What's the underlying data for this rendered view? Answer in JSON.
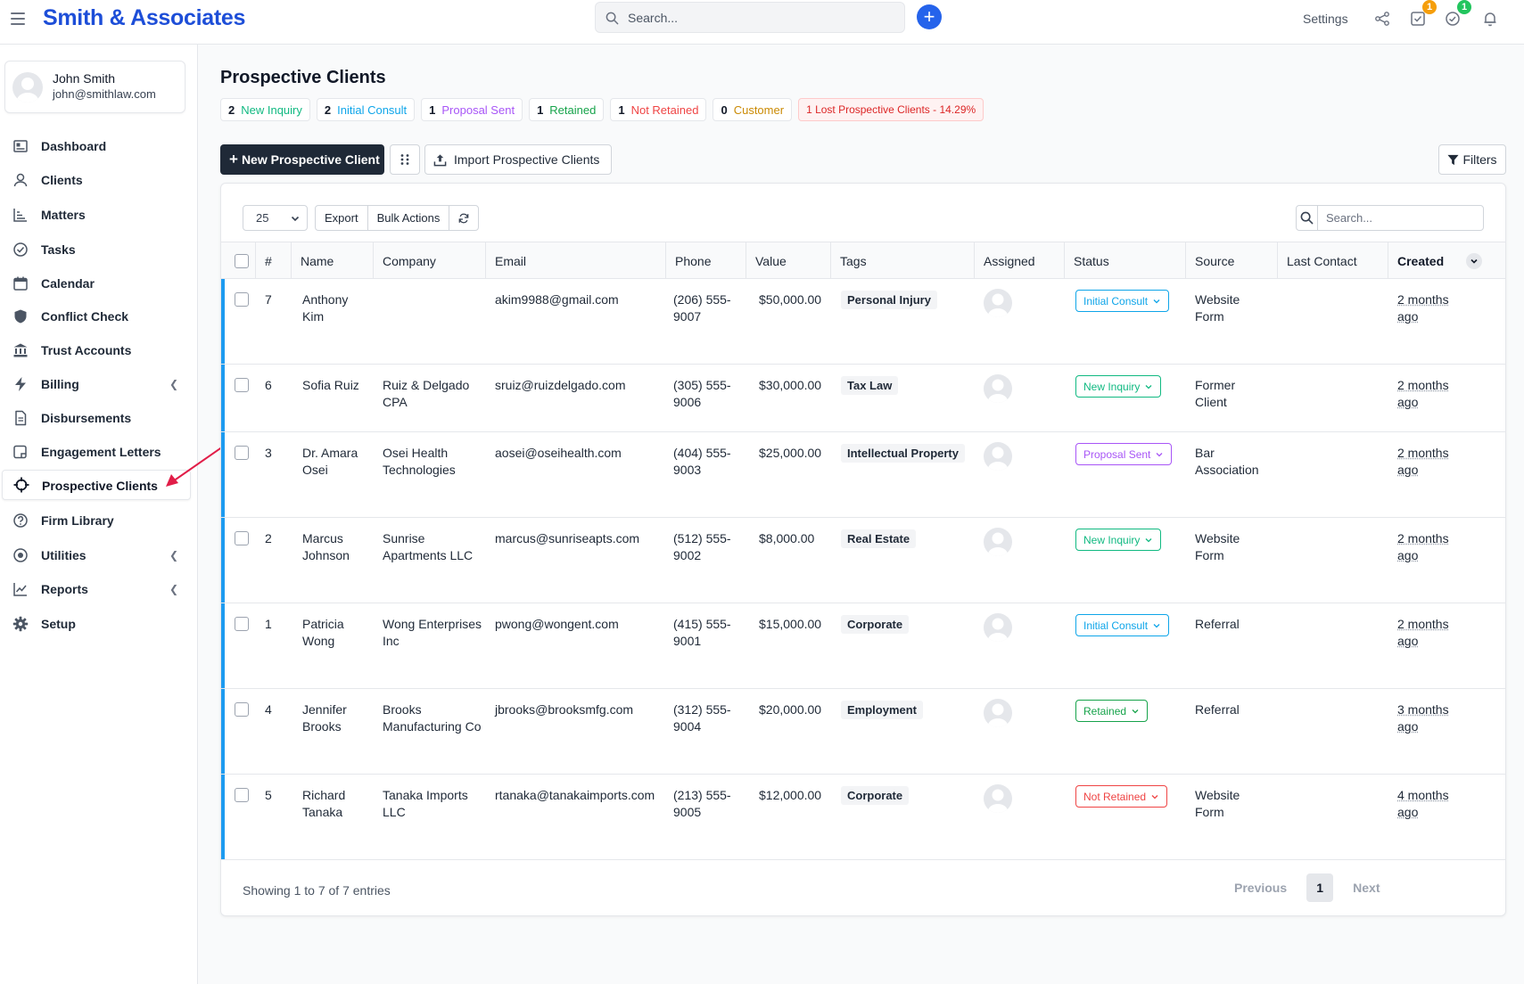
{
  "app": {
    "brand": "Smith & Associates",
    "search_placeholder": "Search...",
    "settings_label": "Settings",
    "badges": {
      "tasks": "1",
      "timer": "1"
    },
    "colors": {
      "brand": "#1d4ed8",
      "accent": "#2563eb",
      "badge_orange": "#f59e0b",
      "badge_green": "#22c55e"
    }
  },
  "user": {
    "name": "John Smith",
    "email": "john@smithlaw.com"
  },
  "sidebar": {
    "items": [
      {
        "label": "Dashboard",
        "icon": "dashboard-icon"
      },
      {
        "label": "Clients",
        "icon": "user-icon"
      },
      {
        "label": "Matters",
        "icon": "chart-bars-icon"
      },
      {
        "label": "Tasks",
        "icon": "check-circle-icon"
      },
      {
        "label": "Calendar",
        "icon": "calendar-icon"
      },
      {
        "label": "Conflict Check",
        "icon": "shield-icon"
      },
      {
        "label": "Trust Accounts",
        "icon": "bank-icon"
      },
      {
        "label": "Billing",
        "icon": "bolt-icon"
      },
      {
        "label": "Disbursements",
        "icon": "document-icon"
      },
      {
        "label": "Engagement Letters",
        "icon": "letter-icon"
      },
      {
        "label": "Prospective Clients",
        "icon": "crosshair-icon"
      },
      {
        "label": "Firm Library",
        "icon": "help-circle-icon"
      },
      {
        "label": "Utilities",
        "icon": "target-icon"
      },
      {
        "label": "Reports",
        "icon": "line-chart-icon"
      },
      {
        "label": "Setup",
        "icon": "gear-icon"
      }
    ]
  },
  "main": {
    "title": "Prospective Clients",
    "summary": [
      {
        "count": "2",
        "label": "New Inquiry",
        "color": "#10b981"
      },
      {
        "count": "2",
        "label": "Initial Consult",
        "color": "#0ea5e9"
      },
      {
        "count": "1",
        "label": "Proposal Sent",
        "color": "#a855f7"
      },
      {
        "count": "1",
        "label": "Retained",
        "color": "#16a34a"
      },
      {
        "count": "1",
        "label": "Not Retained",
        "color": "#ef4444"
      },
      {
        "count": "0",
        "label": "Customer",
        "color": "#ca8a04"
      }
    ],
    "lost_summary": "1 Lost Prospective Clients - 14.29%",
    "new_button": "New Prospective Client",
    "import_button": "Import Prospective Clients",
    "filters_button": "Filters"
  },
  "table": {
    "page_size": "25",
    "export_label": "Export",
    "bulk_label": "Bulk Actions",
    "search_placeholder": "Search...",
    "columns": [
      "#",
      "Name",
      "Company",
      "Email",
      "Phone",
      "Value",
      "Tags",
      "Assigned",
      "Status",
      "Source",
      "Last Contact",
      "Created"
    ],
    "rows": [
      {
        "id": "7",
        "name": [
          "Anthony",
          "Kim"
        ],
        "company": [],
        "email": "akim9988@gmail.com",
        "phone": [
          "(206) 555-",
          "9007"
        ],
        "value": "$50,000.00",
        "tag": "Personal Injury",
        "status": "Initial Consult",
        "status_color": "#0ea5e9",
        "source": [
          "Website",
          "Form"
        ],
        "last_contact": "",
        "created": [
          "2 months",
          "ago"
        ]
      },
      {
        "id": "6",
        "name": [
          "Sofia Ruiz"
        ],
        "company": [
          "Ruiz & Delgado",
          "CPA"
        ],
        "email": "sruiz@ruizdelgado.com",
        "phone": [
          "(305) 555-",
          "9006"
        ],
        "value": "$30,000.00",
        "tag": "Tax Law",
        "status": "New Inquiry",
        "status_color": "#10b981",
        "source": [
          "Former",
          "Client"
        ],
        "last_contact": "",
        "created": [
          "2 months",
          "ago"
        ]
      },
      {
        "id": "3",
        "name": [
          "Dr. Amara",
          "Osei"
        ],
        "company": [
          "Osei Health",
          "Technologies"
        ],
        "email": "aosei@oseihealth.com",
        "phone": [
          "(404) 555-",
          "9003"
        ],
        "value": "$25,000.00",
        "tag": "Intellectual Property",
        "status": "Proposal Sent",
        "status_color": "#a855f7",
        "source": [
          "Bar",
          "Association"
        ],
        "last_contact": "",
        "created": [
          "2 months",
          "ago"
        ]
      },
      {
        "id": "2",
        "name": [
          "Marcus",
          "Johnson"
        ],
        "company": [
          "Sunrise",
          "Apartments LLC"
        ],
        "email": "marcus@sunriseapts.com",
        "phone": [
          "(512) 555-",
          "9002"
        ],
        "value": "$8,000.00",
        "tag": "Real Estate",
        "status": "New Inquiry",
        "status_color": "#10b981",
        "source": [
          "Website",
          "Form"
        ],
        "last_contact": "",
        "created": [
          "2 months",
          "ago"
        ]
      },
      {
        "id": "1",
        "name": [
          "Patricia",
          "Wong"
        ],
        "company": [
          "Wong Enterprises",
          "Inc"
        ],
        "email": "pwong@wongent.com",
        "phone": [
          "(415) 555-",
          "9001"
        ],
        "value": "$15,000.00",
        "tag": "Corporate",
        "status": "Initial Consult",
        "status_color": "#0ea5e9",
        "source": [
          "Referral"
        ],
        "last_contact": "",
        "created": [
          "2 months",
          "ago"
        ]
      },
      {
        "id": "4",
        "name": [
          "Jennifer",
          "Brooks"
        ],
        "company": [
          "Brooks",
          "Manufacturing Co"
        ],
        "email": "jbrooks@brooksmfg.com",
        "phone": [
          "(312) 555-",
          "9004"
        ],
        "value": "$20,000.00",
        "tag": "Employment",
        "status": "Retained",
        "status_color": "#16a34a",
        "source": [
          "Referral"
        ],
        "last_contact": "",
        "created": [
          "3 months",
          "ago"
        ]
      },
      {
        "id": "5",
        "name": [
          "Richard",
          "Tanaka"
        ],
        "company": [
          "Tanaka Imports",
          "LLC"
        ],
        "email": "rtanaka@tanakaimports.com",
        "phone": [
          "(213) 555-",
          "9005"
        ],
        "value": "$12,000.00",
        "tag": "Corporate",
        "status": "Not Retained",
        "status_color": "#ef4444",
        "source": [
          "Website",
          "Form"
        ],
        "last_contact": "",
        "created": [
          "4 months",
          "ago"
        ]
      }
    ],
    "footer": "Showing 1 to 7 of 7 entries",
    "pager": {
      "previous": "Previous",
      "current": "1",
      "next": "Next"
    }
  }
}
